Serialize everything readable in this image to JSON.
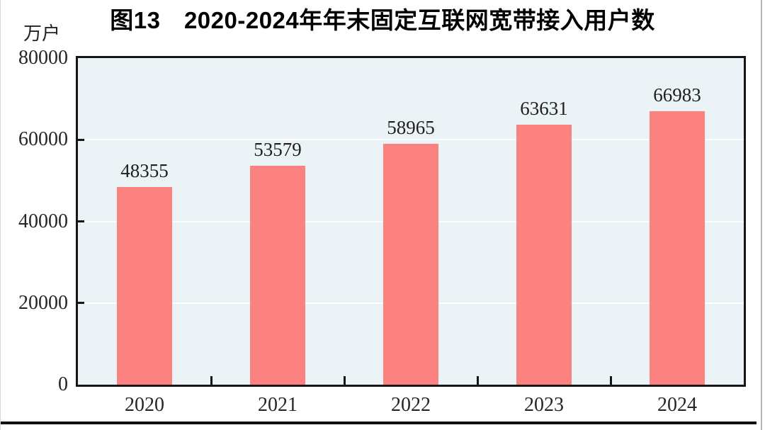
{
  "chart_data": {
    "type": "bar",
    "title": "图13　2020-2024年年末固定互联网宽带接入用户数",
    "unit_label": "万户",
    "categories": [
      "2020",
      "2021",
      "2022",
      "2023",
      "2024"
    ],
    "values": [
      48355,
      53579,
      58965,
      63631,
      66983
    ],
    "value_labels": [
      "48355",
      "53579",
      "58965",
      "63631",
      "66983"
    ],
    "y_ticks": [
      0,
      20000,
      40000,
      60000,
      80000
    ],
    "y_tick_labels": [
      "0",
      "20000",
      "40000",
      "60000",
      "80000"
    ],
    "ylim": [
      0,
      80000
    ],
    "xlabel": "",
    "ylabel": "万户",
    "grid": "horizontal-white-lines-at-y-ticks",
    "legend_position": "none",
    "bar_color": "#fc8181",
    "plot_background_color": "#ecf3f6",
    "axis_color": "#161616",
    "gridline_color": "#ffffff"
  }
}
